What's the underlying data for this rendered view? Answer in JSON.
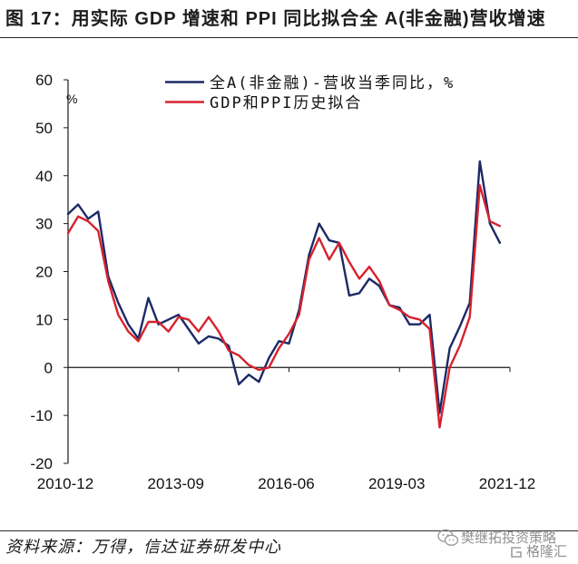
{
  "chart_data": {
    "type": "line",
    "title": "图 17：用实际 GDP 增速和 PPI 同比拟合全 A(非金融)营收增速",
    "ylabel": "%",
    "ylim": [
      -20,
      60
    ],
    "yticks": [
      -20,
      -10,
      0,
      10,
      20,
      30,
      40,
      50,
      60
    ],
    "xlim": [
      "2010-12",
      "2021-12"
    ],
    "xticks": [
      "2010-12",
      "2013-09",
      "2016-06",
      "2019-03",
      "2021-12"
    ],
    "grid": false,
    "legend_position": "top-center",
    "x": [
      "2010-12",
      "2011-03",
      "2011-06",
      "2011-09",
      "2011-12",
      "2012-03",
      "2012-06",
      "2012-09",
      "2012-12",
      "2013-03",
      "2013-06",
      "2013-09",
      "2013-12",
      "2014-03",
      "2014-06",
      "2014-09",
      "2014-12",
      "2015-03",
      "2015-06",
      "2015-09",
      "2015-12",
      "2016-03",
      "2016-06",
      "2016-09",
      "2016-12",
      "2017-03",
      "2017-06",
      "2017-09",
      "2017-12",
      "2018-03",
      "2018-06",
      "2018-09",
      "2018-12",
      "2019-03",
      "2019-06",
      "2019-09",
      "2019-12",
      "2020-03",
      "2020-06",
      "2020-09",
      "2020-12",
      "2021-03",
      "2021-06",
      "2021-09"
    ],
    "series": [
      {
        "name": "全A(非金融)-营收当季同比，%",
        "color": "#1b2a66",
        "values": [
          32,
          34,
          31,
          32.5,
          19,
          13.5,
          9,
          6,
          14.5,
          9,
          10,
          11,
          8,
          5,
          6.5,
          6,
          4.5,
          -3.5,
          -1.5,
          -3,
          2,
          5.5,
          5,
          12,
          23.5,
          30,
          26.5,
          26,
          15,
          15.5,
          18.5,
          17,
          13,
          12.5,
          9,
          9,
          11,
          -9.5,
          4,
          8.5,
          13.5,
          43,
          30,
          26
        ]
      },
      {
        "name": "GDP和PPI历史拟合",
        "color": "#d7222e",
        "values": [
          28,
          31.5,
          30.5,
          28.5,
          18,
          11,
          7.5,
          5.5,
          9.5,
          9.5,
          7.5,
          10.5,
          10,
          7.5,
          10.5,
          7.5,
          3.5,
          2.5,
          0.5,
          -0.5,
          0,
          4,
          7,
          11,
          22.5,
          27,
          22.5,
          26,
          22,
          18.5,
          21,
          18,
          13,
          12,
          10.5,
          10,
          8,
          -12.5,
          0,
          4.5,
          10.5,
          38,
          30.5,
          29.5
        ]
      }
    ]
  },
  "footer": {
    "source": "资料来源：万得，信达证券研发中心",
    "watermark": {
      "account_icon": "wechat-icon",
      "account": "樊继拓投资策略",
      "logo_icon": "gelonghui-logo-icon",
      "logo_text": "格隆汇"
    }
  }
}
